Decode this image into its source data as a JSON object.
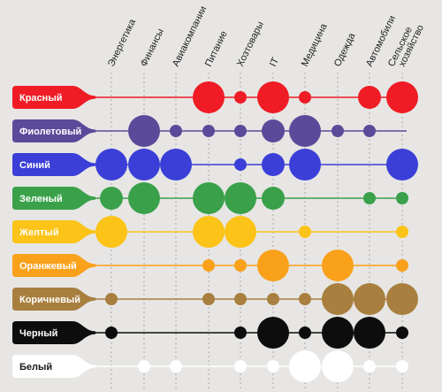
{
  "chart_data": {
    "type": "bubble-matrix",
    "title": "",
    "categories": [
      "Энергетика",
      "Финансы",
      "Авиакомпании",
      "Питание",
      "Хозтовары",
      "IT",
      "Медицина",
      "Одежда",
      "Автомобили",
      "Сельское хозяйство"
    ],
    "category_lines": [
      [
        "Энергетика"
      ],
      [
        "Финансы"
      ],
      [
        "Авиакомпании"
      ],
      [
        "Питание"
      ],
      [
        "Хозтовары"
      ],
      [
        "IT"
      ],
      [
        "Медицина"
      ],
      [
        "Одежда"
      ],
      [
        "Автомобили"
      ],
      [
        "Сельское",
        "хозяйство"
      ]
    ],
    "size_scale": "0 = none, 1 = small, 2 = medium, 3 = large",
    "series": [
      {
        "name": "Красный",
        "color": "#ef1c25",
        "text_color": "#ffffff",
        "values": [
          0,
          0,
          0,
          3,
          1,
          3,
          1,
          0,
          2,
          3
        ]
      },
      {
        "name": "Фиолетовый",
        "color": "#5b4a9a",
        "text_color": "#ffffff",
        "values": [
          0,
          3,
          1,
          1,
          1,
          2,
          3,
          1,
          1,
          0
        ]
      },
      {
        "name": "Синий",
        "color": "#3b3fd8",
        "text_color": "#ffffff",
        "values": [
          3,
          3,
          3,
          0,
          1,
          2,
          3,
          0,
          0,
          3
        ]
      },
      {
        "name": "Зеленый",
        "color": "#3aa14a",
        "text_color": "#ffffff",
        "values": [
          2,
          3,
          0,
          3,
          3,
          2,
          0,
          0,
          1,
          1
        ]
      },
      {
        "name": "Желтый",
        "color": "#fcc318",
        "text_color": "#ffffff",
        "values": [
          3,
          0,
          0,
          3,
          3,
          0,
          1,
          0,
          0,
          1
        ]
      },
      {
        "name": "Оранжевый",
        "color": "#f9a11b",
        "text_color": "#ffffff",
        "values": [
          0,
          0,
          0,
          1,
          1,
          3,
          0,
          3,
          0,
          1
        ]
      },
      {
        "name": "Коричневый",
        "color": "#a87f3e",
        "text_color": "#ffffff",
        "values": [
          1,
          0,
          0,
          1,
          1,
          1,
          1,
          3,
          3,
          3
        ]
      },
      {
        "name": "Черный",
        "color": "#0d0d0d",
        "text_color": "#ffffff",
        "values": [
          1,
          0,
          0,
          0,
          1,
          3,
          1,
          3,
          3,
          1
        ]
      },
      {
        "name": "Белый",
        "color": "#ffffff",
        "text_color": "#1a1a1a",
        "values": [
          0,
          1,
          1,
          0,
          1,
          1,
          3,
          3,
          1,
          1
        ]
      }
    ]
  }
}
